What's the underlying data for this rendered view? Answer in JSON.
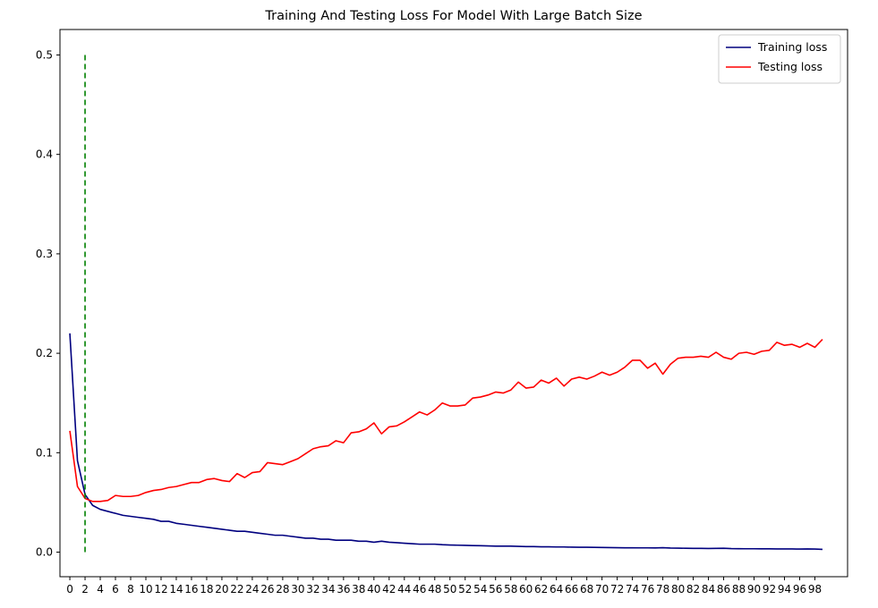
{
  "chart_data": {
    "type": "line",
    "title": "Training And Testing Loss For Model With Large Batch Size",
    "xlabel": "",
    "ylabel": "",
    "xlim": [
      -1.3,
      102.3
    ],
    "ylim": [
      -0.0247,
      0.5256
    ],
    "xticks": [
      0,
      2,
      4,
      6,
      8,
      10,
      12,
      14,
      16,
      18,
      20,
      22,
      24,
      26,
      28,
      30,
      32,
      34,
      36,
      38,
      40,
      42,
      44,
      46,
      48,
      50,
      52,
      54,
      56,
      58,
      60,
      62,
      64,
      66,
      68,
      70,
      72,
      74,
      76,
      78,
      80,
      82,
      84,
      86,
      88,
      90,
      92,
      94,
      96,
      98
    ],
    "yticks": [
      0.0,
      0.1,
      0.2,
      0.3,
      0.4,
      0.5
    ],
    "ytick_labels": [
      "0.0",
      "0.1",
      "0.2",
      "0.3",
      "0.4",
      "0.5"
    ],
    "grid": false,
    "legend_position": "top-right",
    "series": [
      {
        "name": "Training loss",
        "color": "#00007f",
        "style": "solid",
        "x": [
          0,
          1,
          2,
          3,
          4,
          5,
          6,
          7,
          8,
          9,
          10,
          11,
          12,
          13,
          14,
          15,
          16,
          17,
          18,
          19,
          20,
          21,
          22,
          23,
          24,
          25,
          26,
          27,
          28,
          29,
          30,
          31,
          32,
          33,
          34,
          35,
          36,
          37,
          38,
          39,
          40,
          41,
          42,
          43,
          44,
          45,
          46,
          47,
          48,
          49,
          50,
          51,
          52,
          53,
          54,
          55,
          56,
          57,
          58,
          59,
          60,
          61,
          62,
          63,
          64,
          65,
          66,
          67,
          68,
          69,
          70,
          71,
          72,
          73,
          74,
          75,
          76,
          77,
          78,
          79,
          80,
          81,
          82,
          83,
          84,
          85,
          86,
          87,
          88,
          89,
          90,
          91,
          92,
          93,
          94,
          95,
          96,
          97,
          98,
          99
        ],
        "values": [
          0.22,
          0.092,
          0.058,
          0.047,
          0.043,
          0.041,
          0.039,
          0.037,
          0.036,
          0.035,
          0.034,
          0.033,
          0.031,
          0.031,
          0.029,
          0.028,
          0.027,
          0.026,
          0.025,
          0.024,
          0.023,
          0.022,
          0.021,
          0.021,
          0.02,
          0.019,
          0.018,
          0.017,
          0.017,
          0.016,
          0.015,
          0.014,
          0.014,
          0.013,
          0.013,
          0.012,
          0.012,
          0.012,
          0.011,
          0.011,
          0.01,
          0.011,
          0.01,
          0.0095,
          0.009,
          0.0085,
          0.008,
          0.008,
          0.008,
          0.0075,
          0.0072,
          0.007,
          0.0068,
          0.0066,
          0.0065,
          0.0063,
          0.006,
          0.006,
          0.006,
          0.0058,
          0.0056,
          0.0056,
          0.0054,
          0.0054,
          0.0052,
          0.0052,
          0.005,
          0.0049,
          0.0049,
          0.0048,
          0.0047,
          0.0046,
          0.0045,
          0.0044,
          0.0044,
          0.0043,
          0.0043,
          0.0042,
          0.0045,
          0.0041,
          0.004,
          0.0039,
          0.0038,
          0.0038,
          0.0037,
          0.0038,
          0.0039,
          0.0036,
          0.0035,
          0.0034,
          0.0034,
          0.0033,
          0.0033,
          0.0032,
          0.0032,
          0.0032,
          0.0031,
          0.0032,
          0.0031,
          0.0028
        ]
      },
      {
        "name": "Testing loss",
        "color": "#ff0000",
        "style": "solid",
        "x": [
          0,
          1,
          2,
          3,
          4,
          5,
          6,
          7,
          8,
          9,
          10,
          11,
          12,
          13,
          14,
          15,
          16,
          17,
          18,
          19,
          20,
          21,
          22,
          23,
          24,
          25,
          26,
          27,
          28,
          29,
          30,
          31,
          32,
          33,
          34,
          35,
          36,
          37,
          38,
          39,
          40,
          41,
          42,
          43,
          44,
          45,
          46,
          47,
          48,
          49,
          50,
          51,
          52,
          53,
          54,
          55,
          56,
          57,
          58,
          59,
          60,
          61,
          62,
          63,
          64,
          65,
          66,
          67,
          68,
          69,
          70,
          71,
          72,
          73,
          74,
          75,
          76,
          77,
          78,
          79,
          80,
          81,
          82,
          83,
          84,
          85,
          86,
          87,
          88,
          89,
          90,
          91,
          92,
          93,
          94,
          95,
          96,
          97,
          98,
          99
        ],
        "values": [
          0.122,
          0.066,
          0.054,
          0.051,
          0.051,
          0.052,
          0.057,
          0.056,
          0.056,
          0.057,
          0.06,
          0.062,
          0.063,
          0.065,
          0.066,
          0.068,
          0.07,
          0.07,
          0.073,
          0.074,
          0.072,
          0.071,
          0.079,
          0.075,
          0.08,
          0.081,
          0.09,
          0.089,
          0.088,
          0.091,
          0.094,
          0.099,
          0.104,
          0.106,
          0.107,
          0.112,
          0.11,
          0.12,
          0.121,
          0.124,
          0.13,
          0.119,
          0.126,
          0.127,
          0.131,
          0.136,
          0.141,
          0.138,
          0.143,
          0.15,
          0.147,
          0.147,
          0.148,
          0.155,
          0.156,
          0.158,
          0.161,
          0.16,
          0.163,
          0.171,
          0.165,
          0.166,
          0.173,
          0.17,
          0.175,
          0.167,
          0.174,
          0.176,
          0.174,
          0.177,
          0.181,
          0.178,
          0.181,
          0.186,
          0.193,
          0.193,
          0.185,
          0.19,
          0.179,
          0.189,
          0.195,
          0.196,
          0.196,
          0.197,
          0.196,
          0.201,
          0.196,
          0.194,
          0.2,
          0.201,
          0.199,
          0.202,
          0.203,
          0.211,
          0.208,
          0.209,
          0.206,
          0.21,
          0.206,
          0.214
        ]
      },
      {
        "name": "",
        "color": "#008000",
        "style": "dashed",
        "x": [
          2,
          2
        ],
        "values": [
          0.0,
          0.5
        ]
      }
    ]
  }
}
